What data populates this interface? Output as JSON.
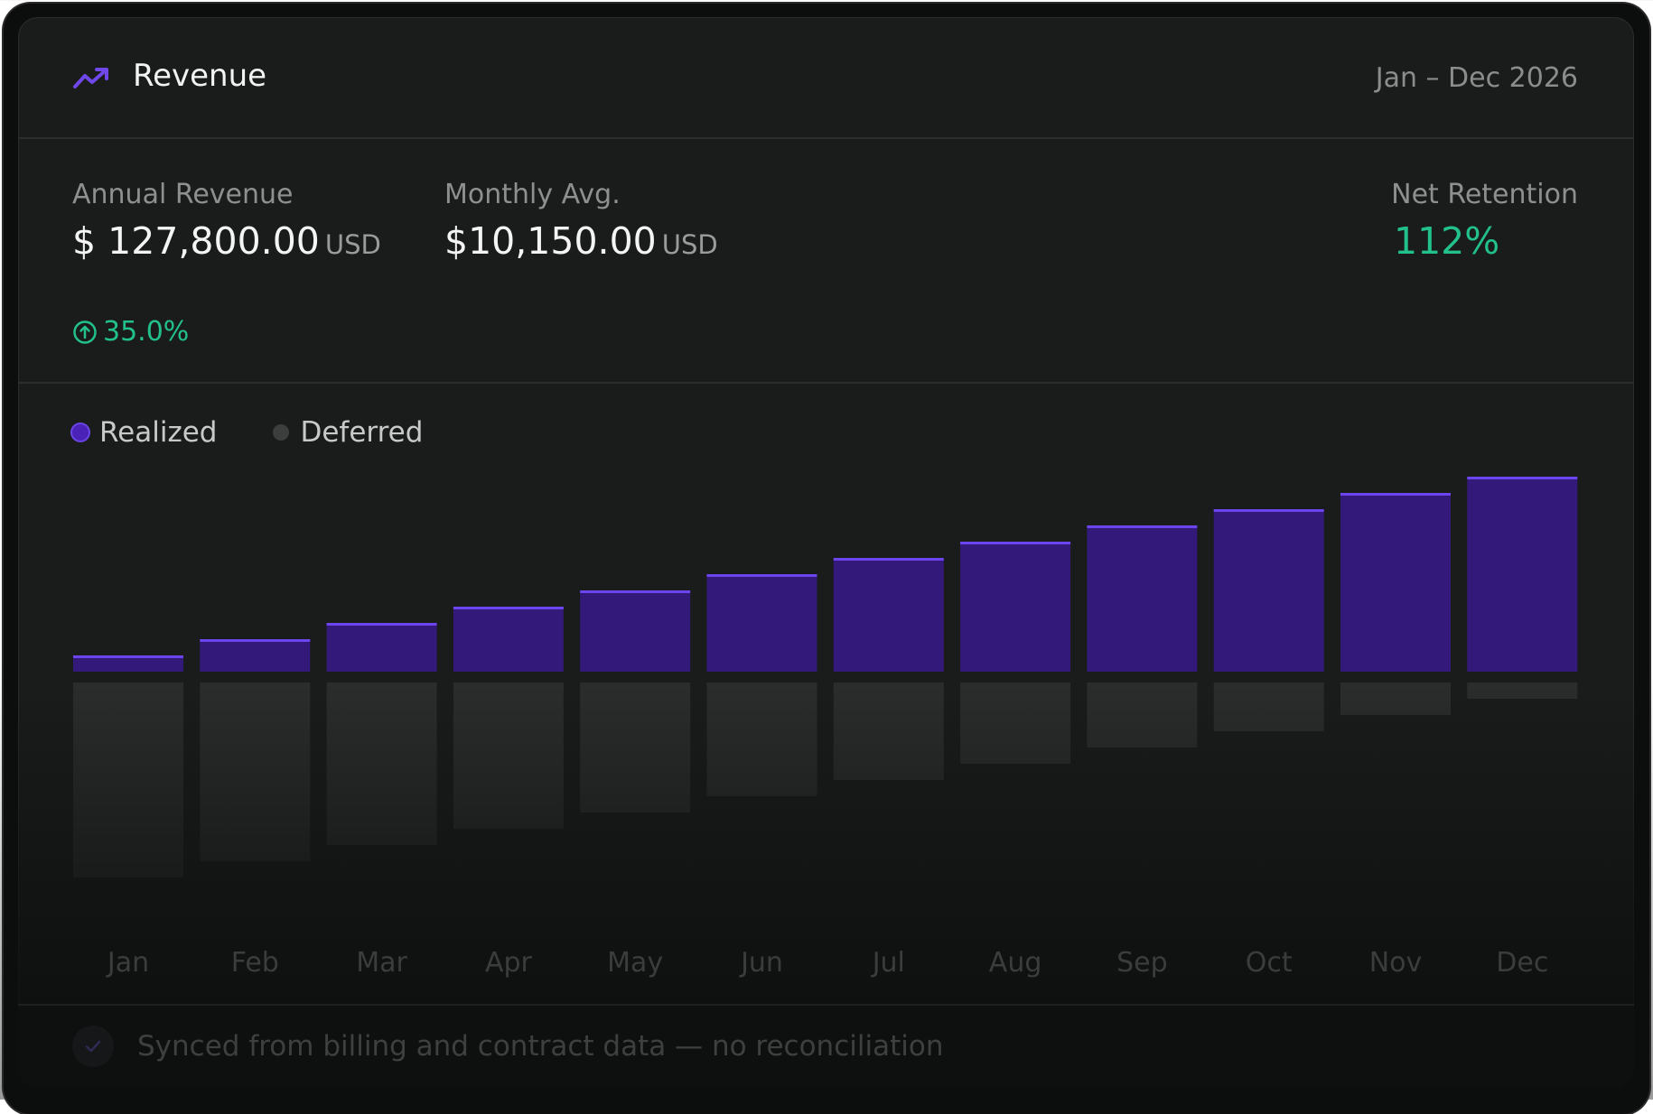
{
  "header": {
    "title": "Revenue",
    "icon": "trend-up-icon",
    "date_range": "Jan – Dec 2026"
  },
  "stats": {
    "annual_revenue": {
      "label": "Annual Revenue",
      "value": "$ 127,800.00",
      "unit": "USD",
      "growth": "35.0%"
    },
    "monthly_avg": {
      "label": "Monthly Avg.",
      "value": "$10,150.00",
      "unit": "USD"
    },
    "net_retention": {
      "label": "Net Retention",
      "value": "112%"
    }
  },
  "colors": {
    "realized": "#331a7a",
    "realized_top": "#6d45ee",
    "deferred": "#2b2d2d",
    "positive": "#22c08a"
  },
  "chart_data": {
    "type": "bar",
    "categories": [
      "Jan",
      "Feb",
      "Mar",
      "Apr",
      "May",
      "Jun",
      "Jul",
      "Aug",
      "Sep",
      "Oct",
      "Nov",
      "Dec"
    ],
    "series": [
      {
        "name": "Realized",
        "values": [
          1,
          2,
          3,
          4,
          5,
          6,
          7,
          8,
          9,
          10,
          11,
          12
        ]
      },
      {
        "name": "Deferred",
        "values": [
          12,
          11,
          10,
          9,
          8,
          7,
          6,
          5,
          4,
          3,
          2,
          1
        ]
      }
    ],
    "layout": "diverging",
    "legend": "top-left",
    "grid": false,
    "y_axis_labels": false
  },
  "footer": {
    "text": "Synced from billing and contract data — no reconciliation"
  }
}
